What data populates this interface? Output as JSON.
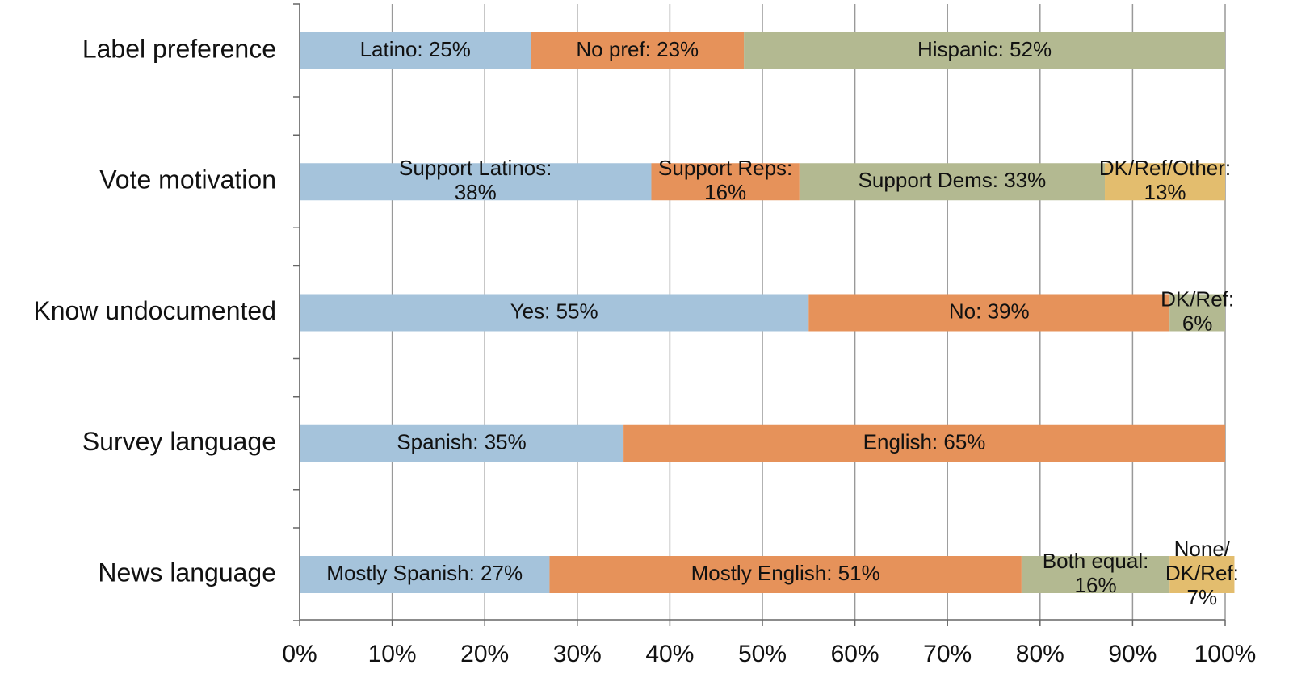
{
  "chart_data": {
    "type": "stacked-bar-horizontal",
    "xlim": [
      0,
      100
    ],
    "xticks": [
      {
        "value": 0,
        "label": "0%"
      },
      {
        "value": 10,
        "label": "10%"
      },
      {
        "value": 20,
        "label": "20%"
      },
      {
        "value": 30,
        "label": "30%"
      },
      {
        "value": 40,
        "label": "40%"
      },
      {
        "value": 50,
        "label": "50%"
      },
      {
        "value": 60,
        "label": "60%"
      },
      {
        "value": 70,
        "label": "70%"
      },
      {
        "value": 80,
        "label": "80%"
      },
      {
        "value": 90,
        "label": "90%"
      },
      {
        "value": 100,
        "label": "100%"
      }
    ],
    "grid": true,
    "bars": [
      {
        "category": "Label preference",
        "segments": [
          {
            "label": [
              "Latino: 25%"
            ],
            "value": 25,
            "color": "#a5c3db"
          },
          {
            "label": [
              "No pref: 23%"
            ],
            "value": 23,
            "color": "#e6925a"
          },
          {
            "label": [
              "Hispanic: 52%"
            ],
            "value": 52,
            "color": "#b3b991"
          }
        ]
      },
      {
        "category": "Vote motivation",
        "segments": [
          {
            "label": [
              "Support Latinos:",
              "38%"
            ],
            "value": 38,
            "color": "#a5c3db"
          },
          {
            "label": [
              "Support Reps:",
              "16%"
            ],
            "value": 16,
            "color": "#e6925a"
          },
          {
            "label": [
              "Support Dems: 33%"
            ],
            "value": 33,
            "color": "#b3b991"
          },
          {
            "label": [
              "DK/Ref/Other:",
              "13%"
            ],
            "value": 13,
            "color": "#e3bd6e"
          }
        ]
      },
      {
        "category": "Know undocumented",
        "segments": [
          {
            "label": [
              "Yes: 55%"
            ],
            "value": 55,
            "color": "#a5c3db"
          },
          {
            "label": [
              "No: 39%"
            ],
            "value": 39,
            "color": "#e6925a"
          },
          {
            "label": [
              "DK/Ref:",
              "6%"
            ],
            "value": 6,
            "color": "#b3b991"
          }
        ]
      },
      {
        "category": "Survey language",
        "segments": [
          {
            "label": [
              "Spanish: 35%"
            ],
            "value": 35,
            "color": "#a5c3db"
          },
          {
            "label": [
              "English: 65%"
            ],
            "value": 65,
            "color": "#e6925a"
          }
        ]
      },
      {
        "category": "News language",
        "segments": [
          {
            "label": [
              "Mostly Spanish: 27%"
            ],
            "value": 27,
            "color": "#a5c3db"
          },
          {
            "label": [
              "Mostly English: 51%"
            ],
            "value": 51,
            "color": "#e6925a"
          },
          {
            "label": [
              "Both equal:",
              "16%"
            ],
            "value": 16,
            "color": "#b3b991"
          },
          {
            "label": [
              "None/",
              "DK/Ref:",
              "7%"
            ],
            "value": 7,
            "color": "#e3bd6e"
          }
        ]
      }
    ]
  }
}
